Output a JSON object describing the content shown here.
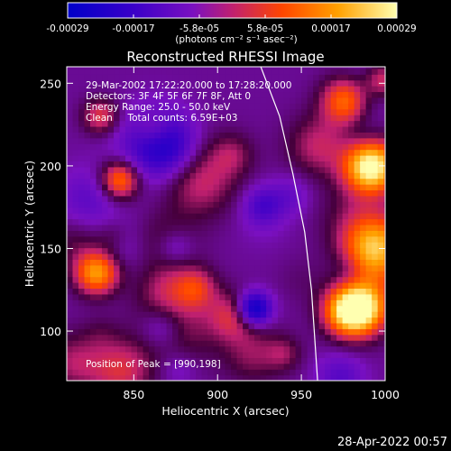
{
  "chart_data": {
    "type": "heatmap",
    "title": "Reconstructed RHESSI Image",
    "xlabel": "Heliocentric X (arcsec)",
    "ylabel": "Heliocentric Y (arcsec)",
    "xlim": [
      810,
      1000
    ],
    "ylim": [
      70,
      260
    ],
    "x_ticks": [
      850,
      900,
      950,
      1000
    ],
    "y_ticks": [
      100,
      150,
      200,
      250
    ],
    "colorbar": {
      "ticks": [
        "-0.00029",
        "-0.00017",
        "-5.8e-05",
        "5.8e-05",
        "0.00017",
        "0.00029"
      ],
      "unit_label": "(photons cm⁻² s⁻¹ asec⁻²)",
      "range": [
        -0.00029,
        0.00029
      ],
      "colors": [
        "#0000c8",
        "#3a00c8",
        "#7a10c0",
        "#c02070",
        "#ff4500",
        "#ffa000",
        "#ffffb0"
      ]
    },
    "annotations": [
      "29-Mar-2002 17:22:20.000 to 17:28:20.000",
      "Detectors: 3F 4F 5F 6F 7F 8F, Att 0",
      "Energy Range: 25.0 - 50.0 keV",
      "Clean     Total counts: 6.59E+03"
    ],
    "peak_label": "Position of Peak = [990,198]",
    "peak": [
      990,
      198
    ],
    "limb_color": "#ffffff"
  },
  "timestamp": "28-Apr-2022 00:57"
}
